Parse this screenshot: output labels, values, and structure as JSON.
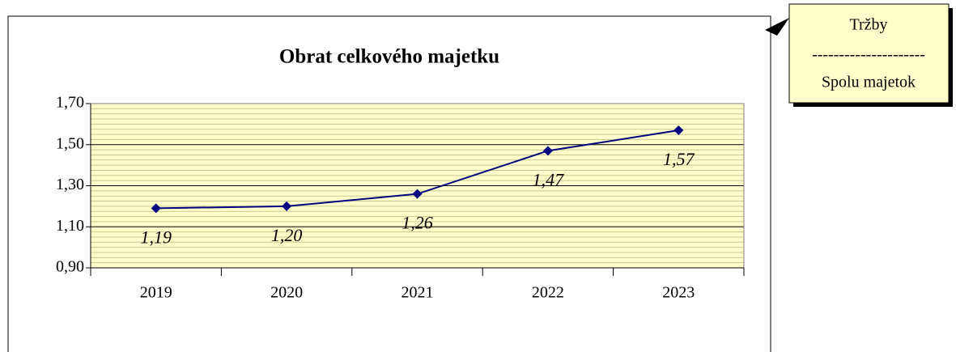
{
  "chart_data": {
    "type": "line",
    "title": "Obrat celkového majetku",
    "categories": [
      "2019",
      "2020",
      "2021",
      "2022",
      "2023"
    ],
    "series": [
      {
        "name": "Obrat celkového majetku",
        "color": "#000080",
        "values": [
          1.19,
          1.2,
          1.26,
          1.47,
          1.57
        ],
        "value_labels": [
          "1,19",
          "1,20",
          "1,26",
          "1,47",
          "1,57"
        ]
      }
    ],
    "ylim": [
      0.9,
      1.7
    ],
    "yticks": [
      {
        "value": 0.9,
        "label": "0,90"
      },
      {
        "value": 1.1,
        "label": "1,10"
      },
      {
        "value": 1.3,
        "label": "1,30"
      },
      {
        "value": 1.5,
        "label": "1,50"
      },
      {
        "value": 1.7,
        "label": "1,70"
      }
    ],
    "grid": true,
    "minor_grid": true,
    "legend": false,
    "annotation": [
      "Tržby",
      "---------------------",
      "Spolu majetok"
    ]
  }
}
